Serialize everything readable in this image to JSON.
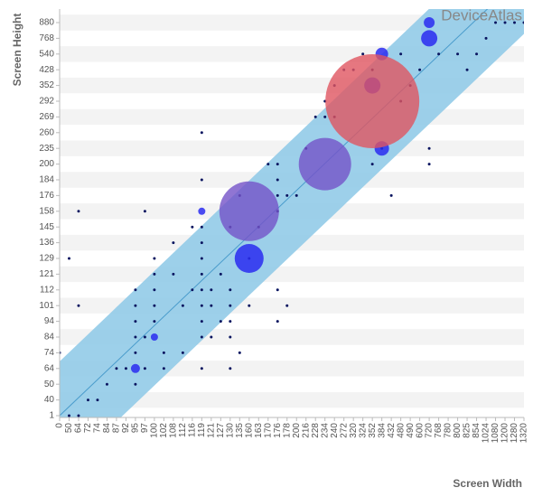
{
  "watermark": "DeviceAtlas",
  "chart_data": {
    "type": "scatter",
    "xlabel": "Screen Width",
    "ylabel": "Screen Height",
    "xticks": [
      0,
      50,
      64,
      72,
      74,
      84,
      87,
      92,
      95,
      97,
      100,
      102,
      108,
      112,
      116,
      119,
      121,
      127,
      130,
      135,
      160,
      163,
      170,
      176,
      178,
      200,
      216,
      228,
      234,
      240,
      272,
      320,
      324,
      352,
      384,
      432,
      480,
      490,
      600,
      720,
      768,
      780,
      800,
      825,
      854,
      1024,
      1080,
      1200,
      1280,
      1320
    ],
    "yticks": [
      1,
      40,
      50,
      64,
      74,
      84,
      94,
      101,
      112,
      121,
      129,
      136,
      145,
      158,
      176,
      184,
      200,
      235,
      260,
      269,
      292,
      352,
      428,
      540,
      768,
      880
    ],
    "series": [
      {
        "color": "#0a1560",
        "x": [
          50,
          64,
          72,
          74,
          84,
          87,
          92,
          95,
          95,
          95,
          95,
          95,
          95,
          97,
          97,
          100,
          100,
          100,
          100,
          100,
          102,
          102,
          108,
          108,
          112,
          112,
          116,
          116,
          119,
          119,
          119,
          119,
          119,
          119,
          119,
          119,
          119,
          121,
          121,
          121,
          127,
          127,
          130,
          130,
          130,
          130,
          130,
          130,
          135,
          135,
          160,
          160,
          163,
          170,
          176,
          176,
          176,
          176,
          176,
          176,
          178,
          200,
          216,
          228,
          234,
          234,
          240,
          240,
          272,
          320,
          324,
          352,
          352,
          384,
          432,
          480,
          480,
          490,
          600,
          720,
          720,
          768,
          800,
          825,
          854,
          1024,
          1080,
          1200,
          1280,
          1320,
          0,
          50,
          64,
          64,
          119,
          119,
          97,
          178
        ],
        "y": [
          1,
          1,
          40,
          40,
          50,
          64,
          64,
          50,
          74,
          84,
          94,
          101,
          112,
          64,
          84,
          94,
          101,
          112,
          121,
          129,
          64,
          74,
          121,
          136,
          74,
          101,
          112,
          145,
          64,
          84,
          94,
          101,
          112,
          121,
          129,
          136,
          145,
          84,
          101,
          112,
          94,
          121,
          64,
          84,
          94,
          101,
          112,
          145,
          74,
          176,
          101,
          129,
          145,
          200,
          184,
          200,
          176,
          158,
          94,
          112,
          176,
          176,
          235,
          269,
          269,
          292,
          269,
          352,
          428,
          428,
          540,
          200,
          428,
          235,
          176,
          540,
          292,
          352,
          428,
          235,
          200,
          540,
          540,
          428,
          540,
          768,
          880,
          880,
          880,
          880,
          74,
          129,
          101,
          158,
          260,
          184,
          158,
          101
        ],
        "sizes": [
          1.5,
          1.5,
          1.5,
          1.5,
          1.5,
          1.5,
          1.5,
          1.5,
          1.5,
          1.5,
          1.5,
          1.5,
          1.5,
          1.5,
          1.5,
          1.5,
          1.5,
          1.5,
          1.5,
          1.5,
          1.5,
          1.5,
          1.5,
          1.5,
          1.5,
          1.5,
          1.5,
          1.5,
          1.5,
          1.5,
          1.5,
          1.5,
          1.5,
          1.5,
          1.5,
          1.5,
          1.5,
          1.5,
          1.5,
          1.5,
          1.5,
          1.5,
          1.5,
          1.5,
          1.5,
          1.5,
          1.5,
          1.5,
          1.5,
          1.5,
          1.5,
          1.5,
          1.5,
          1.5,
          1.5,
          1.5,
          1.5,
          1.5,
          1.5,
          1.5,
          1.5,
          1.5,
          1.5,
          1.5,
          1.5,
          1.5,
          1.5,
          1.5,
          1.5,
          1.5,
          1.5,
          1.5,
          1.5,
          1.5,
          1.5,
          1.5,
          1.5,
          1.5,
          1.5,
          1.5,
          1.5,
          1.5,
          1.5,
          1.5,
          1.5,
          1.5,
          1.5,
          1.5,
          1.5,
          1.5,
          1.5,
          1.5,
          1.5,
          1.5,
          1.5,
          1.5,
          1.5,
          1.5
        ]
      },
      {
        "color": "#2a2cf0",
        "x": [
          160,
          384,
          352,
          384,
          720,
          720,
          119,
          95,
          100
        ],
        "y": [
          129,
          235,
          352,
          540,
          768,
          880,
          158,
          64,
          84
        ],
        "sizes": [
          16,
          8,
          9,
          7,
          9,
          6,
          4,
          5,
          4
        ]
      },
      {
        "color": "#7453c8",
        "x": [
          234,
          160
        ],
        "y": [
          200,
          158
        ],
        "sizes": [
          29,
          33
        ]
      },
      {
        "color": "#e05560",
        "x": [
          352
        ],
        "y": [
          292
        ],
        "sizes": [
          52
        ]
      }
    ]
  }
}
